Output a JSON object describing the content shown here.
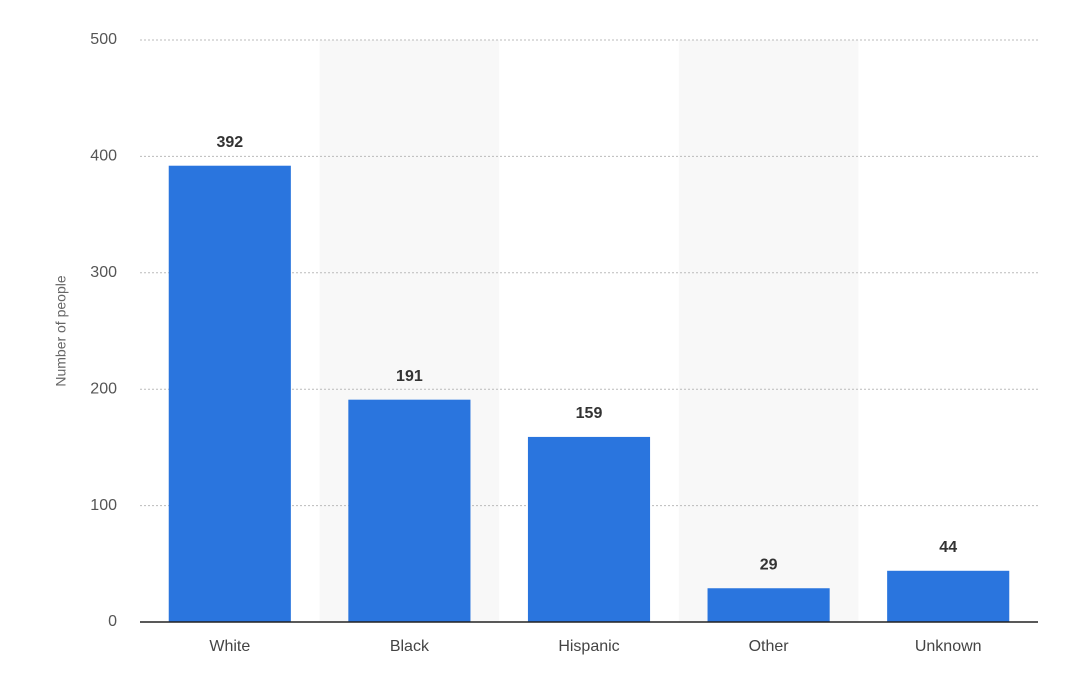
{
  "chart_data": {
    "type": "bar",
    "y_label": "Number of people",
    "categories": [
      "White",
      "Black",
      "Hispanic",
      "Other",
      "Unknown"
    ],
    "values": [
      392,
      191,
      159,
      29,
      44
    ],
    "color": "#2a75de",
    "ylim": [
      0,
      500
    ],
    "yticks": [
      0,
      100,
      200,
      300,
      400,
      500
    ],
    "grid": true
  }
}
